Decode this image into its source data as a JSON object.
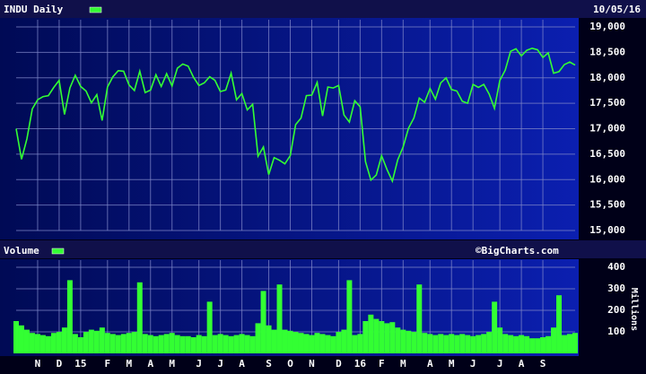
{
  "chart_data": [
    {
      "type": "line",
      "date": "10/05/16",
      "series": [
        {
          "name": "INDU Daily",
          "color": "#33ff33",
          "values": [
            17000,
            16400,
            16800,
            17390,
            17570,
            17630,
            17650,
            17810,
            17950,
            17280,
            17800,
            18050,
            17830,
            17740,
            17510,
            17670,
            17160,
            17820,
            18020,
            18140,
            18130,
            17860,
            17750,
            18130,
            17710,
            17760,
            18060,
            17830,
            18080,
            17840,
            18190,
            18270,
            18230,
            18010,
            17850,
            17900,
            18020,
            17950,
            17730,
            17760,
            18090,
            17570,
            17690,
            17370,
            17480,
            16460,
            16640,
            16100,
            16430,
            16380,
            16310,
            16470,
            17080,
            17210,
            17650,
            17660,
            17910,
            17250,
            17820,
            17800,
            17850,
            17270,
            17130,
            17550,
            17430,
            16350,
            15990,
            16090,
            16470,
            16200,
            15970,
            16390,
            16640,
            17010,
            17210,
            17600,
            17520,
            17790,
            17580,
            17900,
            18000,
            17770,
            17740,
            17540,
            17500,
            17870,
            17810,
            17870,
            17680,
            17400,
            17950,
            18150,
            18520,
            18570,
            18430,
            18540,
            18580,
            18550,
            18400,
            18490,
            18090,
            18120,
            18260,
            18310,
            18250
          ]
        }
      ],
      "ylim": [
        15000,
        19000
      ],
      "yticks": [
        {
          "value": 15000,
          "label": "15,000"
        },
        {
          "value": 15500,
          "label": "15,500"
        },
        {
          "value": 16000,
          "label": "16,000"
        },
        {
          "value": 16500,
          "label": "16,500"
        },
        {
          "value": 17000,
          "label": "17,000"
        },
        {
          "value": 17500,
          "label": "17,500"
        },
        {
          "value": 18000,
          "label": "18,000"
        },
        {
          "value": 18500,
          "label": "18,500"
        },
        {
          "value": 19000,
          "label": "19,000"
        }
      ],
      "grid": true
    },
    {
      "type": "bar",
      "annotation": "©BigCharts.com",
      "y_label": "Millions",
      "categories": [
        null,
        null,
        null,
        null,
        "N",
        null,
        null,
        null,
        "D",
        null,
        null,
        null,
        "15",
        null,
        null,
        null,
        null,
        "F",
        null,
        null,
        null,
        "M",
        null,
        null,
        null,
        "A",
        null,
        null,
        null,
        "M",
        null,
        null,
        null,
        null,
        "J",
        null,
        null,
        null,
        "J",
        null,
        null,
        null,
        "A",
        null,
        null,
        null,
        null,
        "S",
        null,
        null,
        null,
        "O",
        null,
        null,
        null,
        "N",
        null,
        null,
        null,
        null,
        "D",
        null,
        null,
        null,
        "16",
        null,
        null,
        null,
        "F",
        null,
        null,
        null,
        "M",
        null,
        null,
        null,
        null,
        "A",
        null,
        null,
        null,
        "M",
        null,
        null,
        null,
        "J",
        null,
        null,
        null,
        null,
        "J",
        null,
        null,
        null,
        "A",
        null,
        null,
        null,
        "S",
        null,
        null,
        null,
        null,
        null,
        null
      ],
      "series": [
        {
          "name": "Volume",
          "color": "#33ff33",
          "values": [
            150,
            130,
            110,
            95,
            90,
            85,
            80,
            95,
            100,
            120,
            340,
            90,
            75,
            100,
            110,
            105,
            120,
            95,
            90,
            85,
            90,
            95,
            100,
            330,
            90,
            85,
            80,
            85,
            90,
            95,
            85,
            80,
            80,
            75,
            85,
            80,
            240,
            85,
            90,
            85,
            80,
            85,
            90,
            85,
            80,
            140,
            290,
            130,
            110,
            320,
            110,
            105,
            100,
            95,
            90,
            85,
            95,
            90,
            85,
            80,
            100,
            110,
            340,
            85,
            90,
            150,
            180,
            160,
            150,
            140,
            145,
            120,
            110,
            105,
            100,
            320,
            95,
            90,
            85,
            90,
            85,
            90,
            85,
            90,
            85,
            80,
            85,
            90,
            100,
            240,
            120,
            90,
            85,
            80,
            85,
            80,
            70,
            70,
            75,
            80,
            120,
            270,
            85,
            90,
            95
          ]
        }
      ],
      "ylim": [
        0,
        400
      ],
      "yticks": [
        100,
        200,
        300,
        400
      ],
      "grid": true
    }
  ]
}
